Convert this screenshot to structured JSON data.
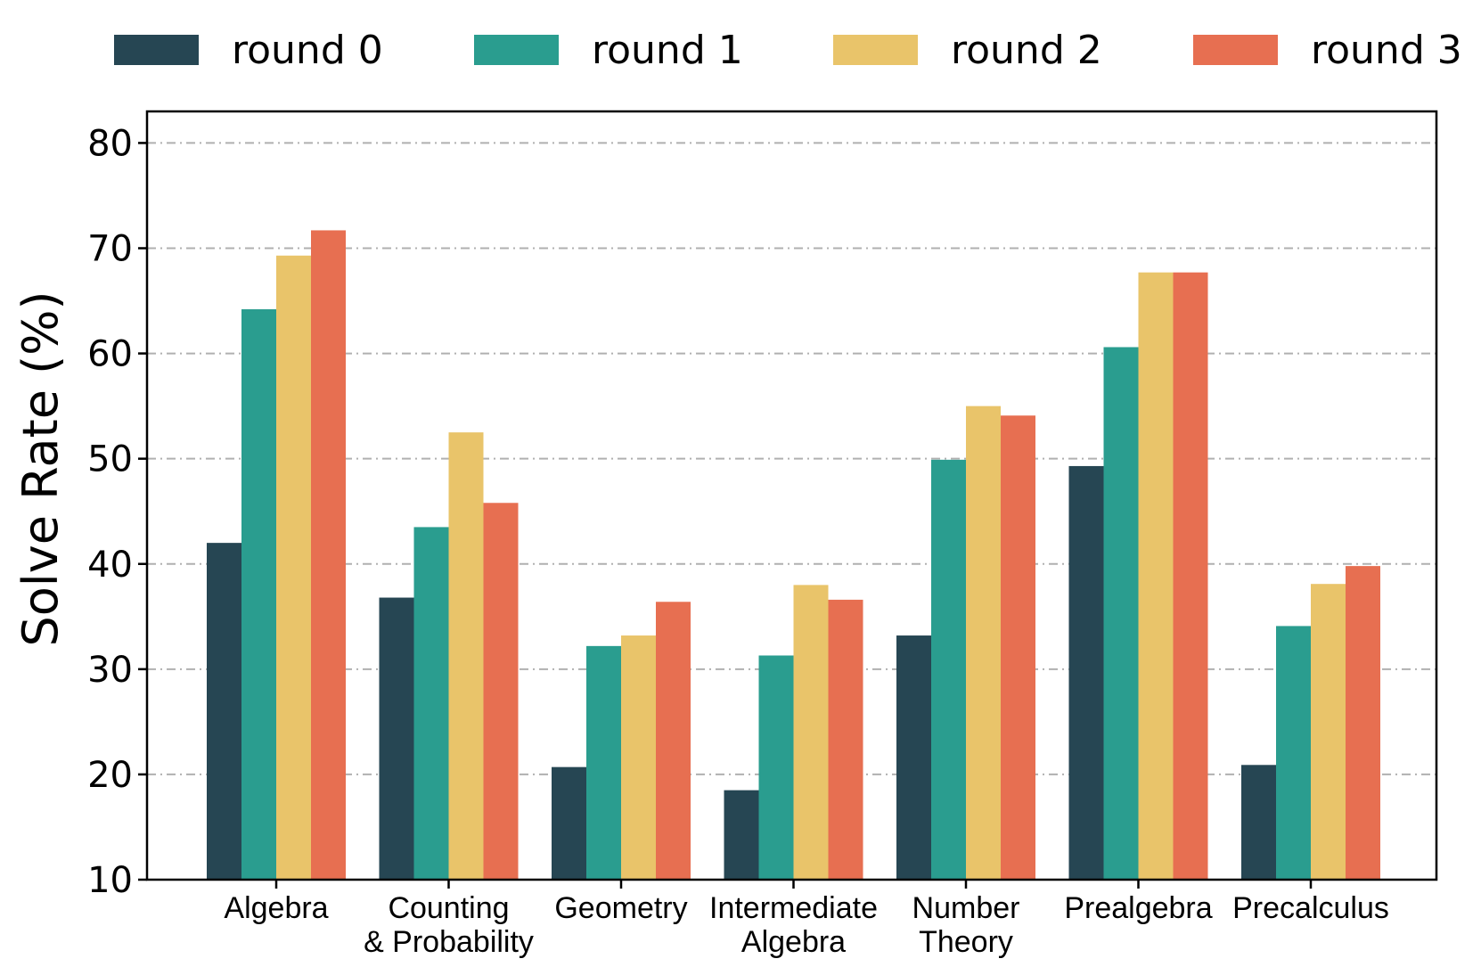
{
  "chart_data": {
    "type": "bar",
    "title": "",
    "xlabel": "",
    "ylabel": "Solve Rate (%)",
    "ylim": [
      10,
      83
    ],
    "yticks": [
      10,
      20,
      30,
      40,
      50,
      60,
      70,
      80
    ],
    "grid": "horizontal, dash-dot, gray",
    "legend_placement": "top, above plot, single row",
    "categories": [
      [
        "Algebra"
      ],
      [
        "Counting",
        "& Probability"
      ],
      [
        "Geometry"
      ],
      [
        "Intermediate",
        "Algebra"
      ],
      [
        "Number",
        "Theory"
      ],
      [
        "Prealgebra"
      ],
      [
        "Precalculus"
      ]
    ],
    "series": [
      {
        "name": "round 0",
        "color": "#264653",
        "values": [
          42.0,
          36.8,
          20.7,
          18.5,
          33.2,
          49.3,
          20.9
        ]
      },
      {
        "name": "round 1",
        "color": "#2a9d8f",
        "values": [
          64.2,
          43.5,
          32.2,
          31.3,
          49.9,
          60.6,
          34.1
        ]
      },
      {
        "name": "round 2",
        "color": "#e9c46a",
        "values": [
          69.3,
          52.5,
          33.2,
          38.0,
          55.0,
          67.7,
          38.1
        ]
      },
      {
        "name": "round 3",
        "color": "#e76f51",
        "values": [
          71.7,
          45.8,
          36.4,
          36.6,
          54.1,
          67.7,
          39.8
        ]
      }
    ]
  }
}
